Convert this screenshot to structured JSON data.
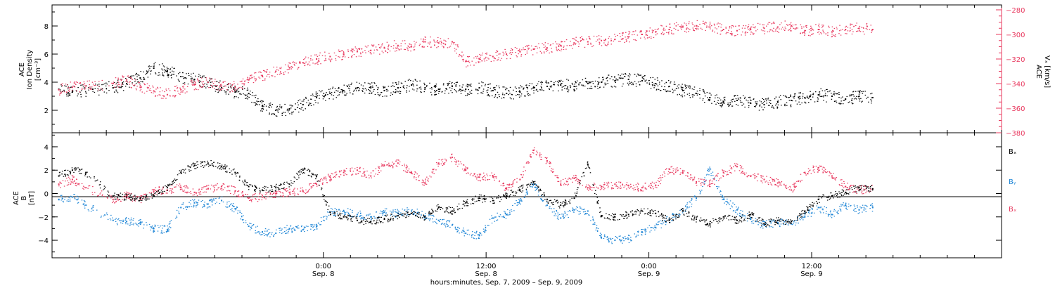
{
  "colors": {
    "black": "#000000",
    "pink": "#e8385e",
    "blue": "#1f86d6",
    "axis": "#000000"
  },
  "xaxis": {
    "title": "hours:minutes, Sep.  7, 2009 – Sep.  9, 2009",
    "range_hours": [
      -20,
      50
    ],
    "major_ticks": [
      {
        "t": 0,
        "time": "0:00",
        "date": "Sep. 8"
      },
      {
        "t": 12,
        "time": "12:00",
        "date": "Sep. 8"
      },
      {
        "t": 24,
        "time": "0:00",
        "date": "Sep. 9"
      },
      {
        "t": 36,
        "time": "12:00",
        "date": "Sep. 9"
      }
    ],
    "minor_step_hours": 2
  },
  "panels": {
    "top": {
      "left_label_lines": [
        "ACE",
        "Ion Density",
        "[cm⁻³]"
      ],
      "right_label_lines": [
        "ACE",
        "Vₓ [km/s]"
      ],
      "left_ticks": [
        "2",
        "4",
        "6",
        "8"
      ],
      "right_ticks": [
        "−380",
        "−360",
        "−340",
        "−320",
        "−300",
        "−280"
      ]
    },
    "bottom": {
      "left_label_lines": [
        "ACE",
        "B",
        "[nT]"
      ],
      "left_ticks": [
        "−4",
        "−2",
        "0",
        "2",
        "4"
      ],
      "legend": [
        {
          "name": "Bₓ",
          "color": "#000000"
        },
        {
          "name": "Bᵧ",
          "color": "#1f86d6"
        },
        {
          "name": "Bₓ",
          "color": "#e8385e"
        }
      ]
    }
  },
  "chart_data": [
    {
      "type": "scatter",
      "title": "",
      "xlabel": "hours:minutes, Sep.  7, 2009 – Sep.  9, 2009",
      "ylabel": "ACE Ion Density [cm⁻³]",
      "ylabel_right": "ACE Vₓ [km/s]",
      "x_units": "hours from 0:00 Sep. 8, 2009",
      "xlim": [
        -20,
        50
      ],
      "ylim": [
        0.4,
        9.5
      ],
      "ylim_right": [
        -380,
        -276
      ],
      "series": [
        {
          "name": "Ion Density",
          "axis": "left",
          "color": "#000000",
          "x": [
            -19.5,
            -18.5,
            -17,
            -15.5,
            -14.5,
            -13.5,
            -12.5,
            -11.5,
            -10.5,
            -9.5,
            -8.5,
            -7.5,
            -6.5,
            -5.5,
            -4.5,
            -3.5,
            -2.5,
            -1.5,
            -0.5,
            0.5,
            1.5,
            2.5,
            3.5,
            4.5,
            5.5,
            6.5,
            7.5,
            8.5,
            9.5,
            10.5,
            11.5,
            12.5,
            13.5,
            14.5,
            15.5,
            16.5,
            17.5,
            18.5,
            19.5,
            20.5,
            21.5,
            22.5,
            23.5,
            24.5,
            25.5,
            26.5,
            27.5,
            28.5,
            29.5,
            30.5,
            31.5,
            32.5,
            33.5,
            34.5,
            35.5,
            36.5,
            37.5,
            38.5,
            39.5,
            40.5
          ],
          "y": [
            3.5,
            3.3,
            3.5,
            3.6,
            3.9,
            4.3,
            5.0,
            4.8,
            4.4,
            4.2,
            4.0,
            3.6,
            3.3,
            3.2,
            2.3,
            2.0,
            2.1,
            2.4,
            2.9,
            3.2,
            3.4,
            3.6,
            3.6,
            3.4,
            3.6,
            3.8,
            3.6,
            3.5,
            3.7,
            3.5,
            3.6,
            3.4,
            3.2,
            3.3,
            3.6,
            3.7,
            3.8,
            3.7,
            3.9,
            4.0,
            4.1,
            4.2,
            4.1,
            3.9,
            3.7,
            3.4,
            3.2,
            2.9,
            2.6,
            2.7,
            2.5,
            2.4,
            2.6,
            2.7,
            2.9,
            3.1,
            3.0,
            2.8,
            3.0,
            2.9
          ]
        },
        {
          "name": "Vₓ",
          "axis": "right",
          "color": "#e8385e",
          "x": [
            -19.5,
            -18.5,
            -17.5,
            -15.5,
            -14.5,
            -13.5,
            -12.5,
            -11.5,
            -10.5,
            -9.5,
            -8.5,
            -7.5,
            -6.5,
            -5.5,
            -4.5,
            -3.5,
            -2.5,
            -1.5,
            -0.5,
            0.5,
            1.5,
            2.5,
            3.5,
            4.5,
            5.5,
            6.5,
            7.5,
            8.5,
            9.5,
            10.5,
            11.5,
            12.5,
            13.5,
            14.5,
            15.5,
            16.5,
            17.5,
            18.5,
            19.5,
            20.5,
            21.5,
            22.5,
            23.5,
            24.5,
            25.5,
            26.5,
            27.5,
            28.5,
            29.5,
            30.5,
            31.5,
            32.5,
            33.5,
            34.5,
            35.5,
            36.5,
            37.5,
            38.5,
            39.5,
            40.5
          ],
          "y": [
            -345,
            -343,
            -342,
            -340,
            -337,
            -343,
            -346,
            -349,
            -345,
            -341,
            -339,
            -342,
            -343,
            -337,
            -334,
            -330,
            -327,
            -323,
            -320,
            -318,
            -316,
            -314,
            -313,
            -311,
            -309,
            -310,
            -306,
            -307,
            -306,
            -322,
            -320,
            -318,
            -316,
            -314,
            -312,
            -311,
            -309,
            -307,
            -306,
            -305,
            -304,
            -302,
            -300,
            -298,
            -296,
            -294,
            -293,
            -294,
            -296,
            -297,
            -296,
            -295,
            -294,
            -293,
            -297,
            -296,
            -298,
            -296,
            -295,
            -296
          ]
        }
      ]
    },
    {
      "type": "scatter",
      "title": "",
      "xlabel": "hours:minutes, Sep.  7, 2009 – Sep.  9, 2009",
      "ylabel": "ACE B [nT]",
      "x_units": "hours from 0:00 Sep. 8, 2009",
      "xlim": [
        -20,
        50
      ],
      "ylim": [
        -5.5,
        5.2
      ],
      "series": [
        {
          "name": "Bₓ",
          "color": "#000000",
          "x": [
            -19.5,
            -18.5,
            -17.5,
            -15.5,
            -14.5,
            -13.5,
            -12.5,
            -11.5,
            -10.5,
            -9.5,
            -8.5,
            -7.5,
            -6.5,
            -5.5,
            -4.5,
            -3.5,
            -2.5,
            -1.5,
            -0.5,
            0.5,
            1.5,
            2.5,
            3.5,
            4.5,
            5.5,
            6.5,
            7.5,
            8.5,
            9.5,
            10.5,
            11.5,
            12.5,
            13.5,
            14.5,
            15.5,
            16.5,
            17.5,
            18.5,
            19.5,
            20.5,
            21.5,
            22.5,
            23.5,
            24.5,
            25.5,
            26.5,
            27.5,
            28.5,
            29.5,
            30.5,
            31.5,
            32.5,
            33.5,
            34.5,
            35.5,
            36.5,
            37.5,
            38.5,
            39.5,
            40.5
          ],
          "y": [
            1.5,
            2.0,
            1.8,
            -0.2,
            -0.3,
            -0.4,
            -0.2,
            0.5,
            1.8,
            2.4,
            2.6,
            2.3,
            1.8,
            0.6,
            0.3,
            0.5,
            0.8,
            2.0,
            1.5,
            -1.6,
            -2.0,
            -2.3,
            -2.4,
            -2.2,
            -1.9,
            -1.7,
            -2.0,
            -1.2,
            -1.5,
            -0.8,
            -0.4,
            -0.6,
            -0.2,
            0.3,
            1.0,
            -0.5,
            -1.0,
            -0.4,
            2.5,
            -1.9,
            -2.0,
            -1.8,
            -1.5,
            -1.7,
            -2.3,
            -1.5,
            -2.2,
            -2.6,
            -2.0,
            -2.3,
            -1.8,
            -2.6,
            -2.3,
            -2.4,
            -1.5,
            -0.5,
            -0.2,
            0.1,
            0.5,
            0.4
          ]
        },
        {
          "name": "Bᵧ",
          "color": "#1f86d6",
          "x": [
            -19.5,
            -18.5,
            -17.5,
            -15.5,
            -14.5,
            -13.5,
            -12.5,
            -11.5,
            -10.5,
            -9.5,
            -8.5,
            -7.5,
            -6.5,
            -5.5,
            -4.5,
            -3.5,
            -2.5,
            -1.5,
            -0.5,
            0.5,
            1.5,
            2.5,
            3.5,
            4.5,
            5.5,
            6.5,
            7.5,
            8.5,
            9.5,
            10.5,
            11.5,
            12.5,
            13.5,
            14.5,
            15.5,
            16.5,
            17.5,
            18.5,
            19.5,
            20.5,
            21.5,
            22.5,
            23.5,
            24.5,
            25.5,
            26.5,
            27.5,
            28.5,
            29.5,
            30.5,
            31.5,
            32.5,
            33.5,
            34.5,
            35.5,
            36.5,
            37.5,
            38.5,
            39.5,
            40.5
          ],
          "y": [
            -0.5,
            -0.3,
            -1.0,
            -2.3,
            -2.4,
            -2.5,
            -3.0,
            -3.1,
            -1.2,
            -0.8,
            -0.9,
            -0.6,
            -1.3,
            -2.8,
            -3.3,
            -3.4,
            -3.0,
            -3.1,
            -2.8,
            -1.6,
            -1.5,
            -1.8,
            -2.0,
            -1.6,
            -1.7,
            -1.5,
            -1.9,
            -2.3,
            -2.7,
            -3.4,
            -3.6,
            -2.1,
            -1.8,
            -0.6,
            0.8,
            -1.0,
            -2.1,
            -1.4,
            -1.5,
            -3.8,
            -4.0,
            -3.9,
            -3.3,
            -2.9,
            -2.2,
            -1.5,
            -0.4,
            2.1,
            -0.5,
            -1.4,
            -2.2,
            -2.7,
            -2.5,
            -2.6,
            -2.0,
            -1.2,
            -1.8,
            -1.0,
            -1.4,
            -1.2
          ]
        },
        {
          "name": "Bₓ",
          "color": "#e8385e",
          "x": [
            -19.5,
            -18.5,
            -17.5,
            -15.5,
            -14.5,
            -13.5,
            -12.5,
            -11.5,
            -10.5,
            -9.5,
            -8.5,
            -7.5,
            -6.5,
            -5.5,
            -4.5,
            -3.5,
            -2.5,
            -1.5,
            -0.5,
            0.5,
            1.5,
            2.5,
            3.5,
            4.5,
            5.5,
            6.5,
            7.5,
            8.5,
            9.5,
            10.5,
            11.5,
            12.5,
            13.5,
            14.5,
            15.5,
            16.5,
            17.5,
            18.5,
            19.5,
            20.5,
            21.5,
            22.5,
            23.5,
            24.5,
            25.5,
            26.5,
            27.5,
            28.5,
            29.5,
            30.5,
            31.5,
            32.5,
            33.5,
            34.5,
            35.5,
            36.5,
            37.5,
            38.5,
            39.5,
            40.5
          ],
          "y": [
            0.8,
            1.2,
            0.5,
            -0.5,
            -0.2,
            -0.5,
            0.2,
            0.3,
            0.5,
            0.1,
            0.4,
            0.6,
            0.2,
            -0.4,
            -0.3,
            0.0,
            0.1,
            0.2,
            0.8,
            1.4,
            1.8,
            2.0,
            1.5,
            2.4,
            2.6,
            1.8,
            0.9,
            2.6,
            3.1,
            2.0,
            1.4,
            1.5,
            0.4,
            1.2,
            3.7,
            2.8,
            0.8,
            1.3,
            0.5,
            0.6,
            0.8,
            0.7,
            0.5,
            0.7,
            2.1,
            1.8,
            1.0,
            0.8,
            1.8,
            2.3,
            1.5,
            1.2,
            0.9,
            0.3,
            1.8,
            2.2,
            1.5,
            0.6,
            0.3,
            0.4
          ]
        }
      ]
    }
  ]
}
